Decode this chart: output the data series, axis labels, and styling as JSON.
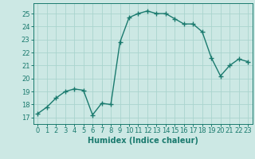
{
  "x": [
    0,
    1,
    2,
    3,
    4,
    5,
    6,
    7,
    8,
    9,
    10,
    11,
    12,
    13,
    14,
    15,
    16,
    17,
    18,
    19,
    20,
    21,
    22,
    23
  ],
  "y": [
    17.3,
    17.8,
    18.5,
    19.0,
    19.2,
    19.1,
    17.2,
    18.1,
    18.0,
    22.8,
    24.7,
    25.0,
    25.2,
    25.0,
    25.0,
    24.6,
    24.2,
    24.2,
    23.6,
    21.6,
    20.2,
    21.0,
    21.5,
    21.3
  ],
  "line_color": "#1a7a6e",
  "marker": "+",
  "marker_size": 4,
  "bg_color": "#cce8e4",
  "grid_color": "#aad4ce",
  "xlabel": "Humidex (Indice chaleur)",
  "ylim": [
    16.5,
    25.8
  ],
  "xlim": [
    -0.5,
    23.5
  ],
  "yticks": [
    17,
    18,
    19,
    20,
    21,
    22,
    23,
    24,
    25
  ],
  "xticks": [
    0,
    1,
    2,
    3,
    4,
    5,
    6,
    7,
    8,
    9,
    10,
    11,
    12,
    13,
    14,
    15,
    16,
    17,
    18,
    19,
    20,
    21,
    22,
    23
  ],
  "xlabel_fontsize": 7,
  "tick_fontsize": 6,
  "line_width": 1.0,
  "marker_edge_width": 1.0
}
